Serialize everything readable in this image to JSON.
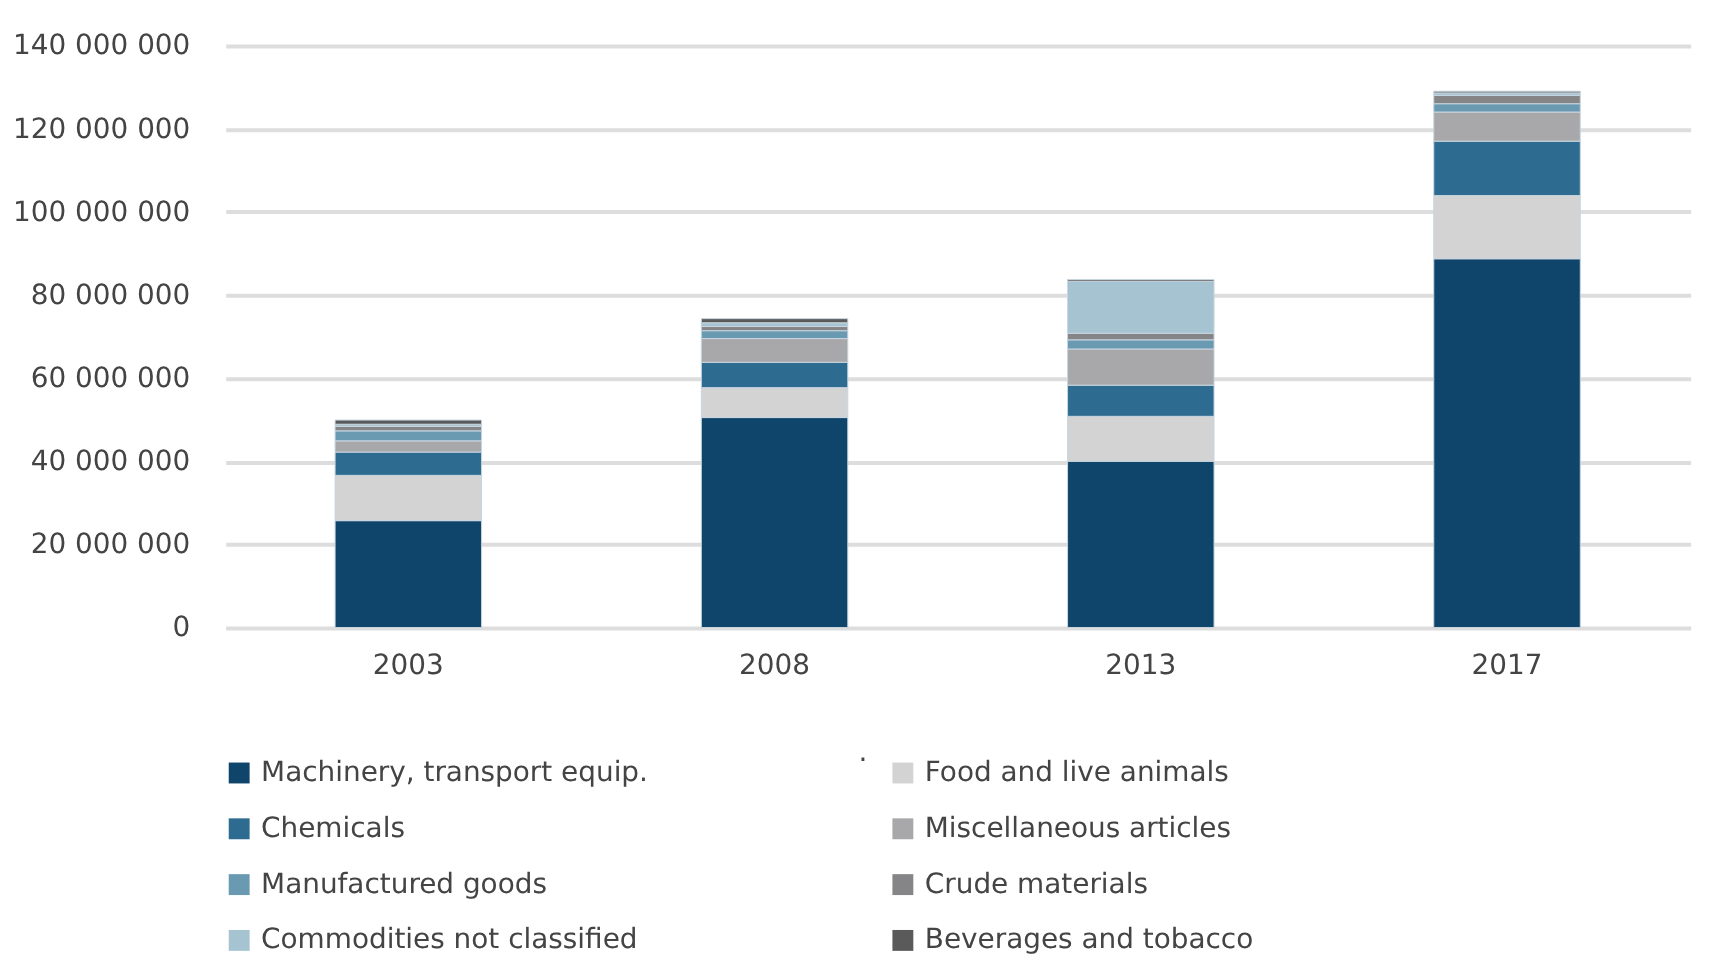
{
  "chart_data": {
    "type": "bar",
    "stacked": true,
    "categories": [
      "2003",
      "2008",
      "2013",
      "2017"
    ],
    "series": [
      {
        "name": "Machinery, transport equip.",
        "color": "#10456b",
        "values": [
          25700000,
          50500000,
          40000000,
          88700000
        ]
      },
      {
        "name": "Food and live animals",
        "color": "#d3d3d3",
        "values": [
          10900000,
          7200000,
          10800000,
          15200000
        ]
      },
      {
        "name": "Chemicals",
        "color": "#2e6b91",
        "values": [
          5600000,
          6100000,
          7500000,
          13100000
        ]
      },
      {
        "name": "Miscellaneous articles",
        "color": "#a8a8aa",
        "values": [
          2700000,
          5700000,
          8700000,
          7000000
        ]
      },
      {
        "name": "Manufactured goods",
        "color": "#6a9ab2",
        "values": [
          2400000,
          1900000,
          2200000,
          2000000
        ]
      },
      {
        "name": "Crude materials",
        "color": "#858587",
        "values": [
          1100000,
          1000000,
          1600000,
          2000000
        ]
      },
      {
        "name": "Commodities not classified",
        "color": "#a5c3d1",
        "values": [
          500000,
          900000,
          12500000,
          600000
        ]
      },
      {
        "name": "Beverages and tobacco",
        "color": "#5a5a5a",
        "values": [
          1000000,
          1000000,
          400000,
          400000
        ]
      }
    ],
    "ylim": [
      0,
      140000000
    ],
    "yticks": [
      {
        "value": 0,
        "label": "0"
      },
      {
        "value": 20000000,
        "label": "20 000 000"
      },
      {
        "value": 40000000,
        "label": "40 000 000"
      },
      {
        "value": 60000000,
        "label": "60 000 000"
      },
      {
        "value": 80000000,
        "label": "80 000 000"
      },
      {
        "value": 100000000,
        "label": "100 000 000"
      },
      {
        "value": 120000000,
        "label": "120 000 000"
      },
      {
        "value": 140000000,
        "label": "140 000 000"
      }
    ],
    "grid": "y",
    "legend": "bottom",
    "annotations": [
      "."
    ]
  }
}
